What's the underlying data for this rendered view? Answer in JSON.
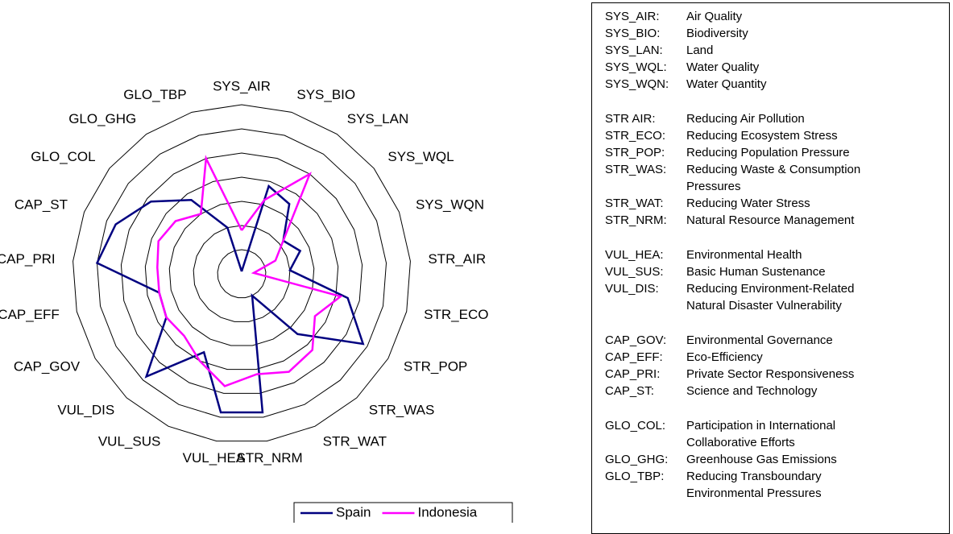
{
  "chart_data": {
    "type": "radar",
    "categories": [
      "SYS_AIR",
      "SYS_BIO",
      "SYS_LAN",
      "SYS_WQL",
      "SYS_WQN",
      "STR_AIR",
      "STR_ECO",
      "STR_POP",
      "STR_WAS",
      "STR_WAT",
      "STR_NRM",
      "VUL_HEA",
      "VUL_SUS",
      "VUL_DIS",
      "CAP_GOV",
      "CAP_EFF",
      "CAP_PRI",
      "CAP_ST",
      "GLO_COL",
      "GLO_GHG",
      "GLO_TBP"
    ],
    "series": [
      {
        "name": "Spain",
        "color": "#000080",
        "values": [
          0.1,
          3.8,
          3.5,
          2.2,
          2.6,
          2.0,
          4.5,
          5.8,
          3.4,
          1.0,
          5.8,
          5.8,
          3.6,
          5.8,
          3.6,
          3.5,
          6.0,
          5.6,
          4.8,
          3.7,
          2.0
        ]
      },
      {
        "name": "Indonesia",
        "color": "#ff00ff",
        "values": [
          1.8,
          3.2,
          5.0,
          2.2,
          1.5,
          0.5,
          4.2,
          3.5,
          4.3,
          4.5,
          4.2,
          4.7,
          4.0,
          3.5,
          3.6,
          3.5,
          3.5,
          3.7,
          3.5,
          3.0,
          5.0
        ]
      }
    ],
    "rlim": [
      0,
      7
    ],
    "rticks": [
      1,
      2,
      3,
      4,
      5,
      6,
      7
    ],
    "grid": true,
    "legend": "bottom"
  },
  "glossary": {
    "groups": [
      [
        {
          "code": "SYS_AIR:",
          "desc": [
            "Air Quality"
          ]
        },
        {
          "code": "SYS_BIO:",
          "desc": [
            "Biodiversity"
          ]
        },
        {
          "code": "SYS_LAN:",
          "desc": [
            "Land"
          ]
        },
        {
          "code": "SYS_WQL:",
          "desc": [
            "Water Quality"
          ]
        },
        {
          "code": "SYS_WQN:",
          "desc": [
            "Water Quantity"
          ]
        }
      ],
      [
        {
          "code": "STR AIR:",
          "desc": [
            "Reducing Air Pollution"
          ]
        },
        {
          "code": "STR_ECO:",
          "desc": [
            "Reducing Ecosystem Stress"
          ]
        },
        {
          "code": "STR_POP:",
          "desc": [
            "Reducing Population Pressure"
          ]
        },
        {
          "code": "STR_WAS:",
          "desc": [
            "Reducing Waste & Consumption",
            "Pressures"
          ]
        },
        {
          "code": "STR_WAT:",
          "desc": [
            "Reducing Water Stress"
          ]
        },
        {
          "code": "STR_NRM:",
          "desc": [
            "Natural Resource Management"
          ]
        }
      ],
      [
        {
          "code": "VUL_HEA:",
          "desc": [
            "Environmental Health"
          ]
        },
        {
          "code": "VUL_SUS:",
          "desc": [
            "Basic Human Sustenance"
          ]
        },
        {
          "code": "VUL_DIS:",
          "desc": [
            "Reducing Environment-Related",
            "Natural Disaster Vulnerability"
          ]
        }
      ],
      [
        {
          "code": "CAP_GOV:",
          "desc": [
            "Environmental Governance"
          ]
        },
        {
          "code": "CAP_EFF:",
          "desc": [
            "Eco-Efficiency"
          ]
        },
        {
          "code": "CAP_PRI:",
          "desc": [
            "Private Sector Responsiveness"
          ]
        },
        {
          "code": "CAP_ST:",
          "desc": [
            "Science and Technology"
          ]
        }
      ],
      [
        {
          "code": "GLO_COL:",
          "desc": [
            "Participation in International",
            "Collaborative Efforts"
          ]
        },
        {
          "code": "GLO_GHG:",
          "desc": [
            "Greenhouse Gas Emissions"
          ]
        },
        {
          "code": "GLO_TBP:",
          "desc": [
            "Reducing Transboundary",
            "Environmental Pressures"
          ]
        }
      ]
    ]
  }
}
